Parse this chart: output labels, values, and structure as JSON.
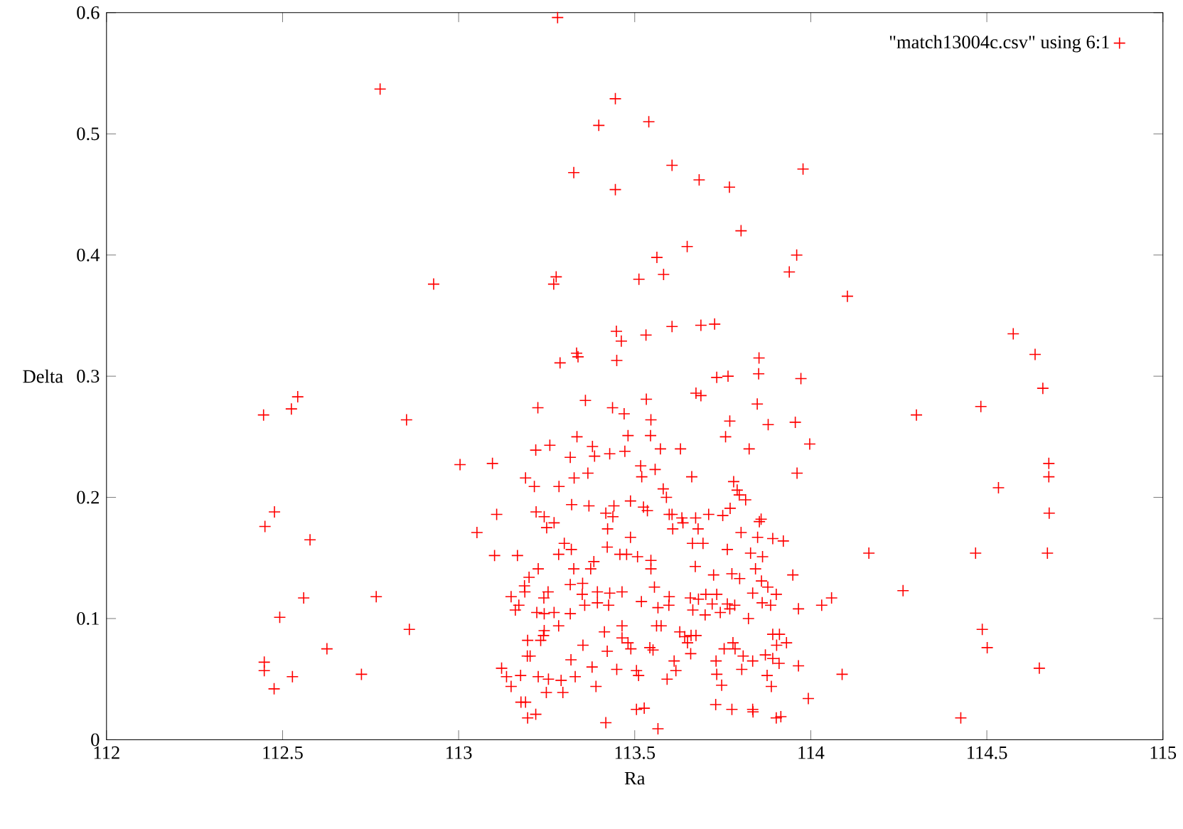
{
  "chart_data": {
    "type": "scatter",
    "xlabel": "Ra",
    "ylabel": "Delta",
    "xlim": [
      112,
      115
    ],
    "ylim": [
      0,
      0.6
    ],
    "xticks": [
      112,
      112.5,
      113,
      113.5,
      114,
      114.5,
      115
    ],
    "yticks": [
      0,
      0.1,
      0.2,
      0.3,
      0.4,
      0.5,
      0.6
    ],
    "marker": "cross",
    "legend": "top right",
    "series": [
      {
        "name": "\"match13004c.csv\" using 6:1",
        "color": "#ff0000",
        "x": [
          112.446,
          112.525,
          112.543,
          112.852,
          112.929,
          112.477,
          112.45,
          112.578,
          112.56,
          112.766,
          112.492,
          112.626,
          112.86,
          112.448,
          112.448,
          112.476,
          112.528,
          112.724,
          113.004,
          113.096,
          113.108,
          113.052,
          113.102,
          113.122,
          113.136,
          113.281,
          112.777,
          113.445,
          113.398,
          113.54,
          113.327,
          113.445,
          113.606,
          113.683,
          113.769,
          113.978,
          113.802,
          113.649,
          113.96,
          114.104,
          114.575,
          114.637,
          114.659,
          113.972,
          114.483,
          114.3,
          113.956,
          113.997,
          113.961,
          114.676,
          114.676,
          114.533,
          114.677,
          114.165,
          114.468,
          114.672,
          114.262,
          114.059,
          114.031,
          113.965,
          114.487,
          114.501,
          113.965,
          114.089,
          114.649,
          113.993,
          114.426,
          113.563,
          113.277,
          113.27,
          113.512,
          113.582,
          113.939,
          113.448,
          113.462,
          113.532,
          113.606,
          113.688,
          113.727,
          113.288,
          113.335,
          113.339,
          113.449,
          113.853,
          113.852,
          113.733,
          113.765,
          113.225,
          113.36,
          113.437,
          113.47,
          113.533,
          113.674,
          113.688,
          113.848,
          113.546,
          113.77,
          113.879,
          113.219,
          113.259,
          113.336,
          113.38,
          113.317,
          113.386,
          113.429,
          113.472,
          113.481,
          113.545,
          113.573,
          113.63,
          113.758,
          113.825,
          113.19,
          113.215,
          113.285,
          113.328,
          113.367,
          113.517,
          113.52,
          113.558,
          113.662,
          113.781,
          113.791,
          113.581,
          113.22,
          113.243,
          113.25,
          113.271,
          113.167,
          113.284,
          113.3,
          113.226,
          113.2,
          113.187,
          113.149,
          113.188,
          113.242,
          113.254,
          113.171,
          113.161,
          113.222,
          113.243,
          113.271,
          113.284,
          113.243,
          113.196,
          113.233,
          113.241,
          113.203,
          113.195,
          113.176,
          113.149,
          113.226,
          113.255,
          113.291,
          113.249,
          113.296,
          113.177,
          113.19,
          113.219,
          113.196,
          113.59,
          113.797,
          113.815,
          113.321,
          113.37,
          113.441,
          113.488,
          113.525,
          113.536,
          113.418,
          113.438,
          113.423,
          113.598,
          113.606,
          113.634,
          113.673,
          113.71,
          113.75,
          113.771,
          113.608,
          113.637,
          113.68,
          113.859,
          113.854,
          113.802,
          113.849,
          113.892,
          113.922,
          113.488,
          113.422,
          113.664,
          113.694,
          113.763,
          113.829,
          113.863,
          113.458,
          113.477,
          113.508,
          113.546,
          113.384,
          113.32,
          113.546,
          113.375,
          113.327,
          113.672,
          113.724,
          113.776,
          113.798,
          113.843,
          113.86,
          113.878,
          113.949,
          113.317,
          113.352,
          113.556,
          113.351,
          113.394,
          113.429,
          113.464,
          113.358,
          113.394,
          113.426,
          113.519,
          113.566,
          113.597,
          113.598,
          113.658,
          113.681,
          113.702,
          113.733,
          113.665,
          113.7,
          113.72,
          113.743,
          113.763,
          113.77,
          113.784,
          113.835,
          113.823,
          113.862,
          113.886,
          113.902,
          113.317,
          113.464,
          113.562,
          113.575,
          113.414,
          113.464,
          113.481,
          113.489,
          113.353,
          113.422,
          113.543,
          113.552,
          113.628,
          113.642,
          113.66,
          113.674,
          113.65,
          113.659,
          113.754,
          113.779,
          113.785,
          113.808,
          113.835,
          113.871,
          113.892,
          113.903,
          113.911,
          113.931,
          113.892,
          113.91,
          113.319,
          113.379,
          113.331,
          113.449,
          113.505,
          113.511,
          113.612,
          113.617,
          113.592,
          113.731,
          113.733,
          113.747,
          113.804,
          113.876,
          113.888,
          113.39,
          113.73,
          113.776,
          113.835,
          113.836,
          113.902,
          113.915,
          113.505,
          113.527,
          113.418,
          113.566
        ],
        "values": [
          0.268,
          0.273,
          0.283,
          0.264,
          0.376,
          0.188,
          0.176,
          0.165,
          0.117,
          0.118,
          0.101,
          0.075,
          0.091,
          0.064,
          0.057,
          0.042,
          0.052,
          0.054,
          0.227,
          0.228,
          0.186,
          0.171,
          0.152,
          0.059,
          0.052,
          0.596,
          0.537,
          0.529,
          0.507,
          0.51,
          0.468,
          0.454,
          0.474,
          0.462,
          0.456,
          0.471,
          0.42,
          0.407,
          0.4,
          0.366,
          0.335,
          0.318,
          0.29,
          0.298,
          0.275,
          0.268,
          0.262,
          0.244,
          0.22,
          0.228,
          0.217,
          0.208,
          0.187,
          0.154,
          0.154,
          0.154,
          0.123,
          0.117,
          0.111,
          0.108,
          0.091,
          0.076,
          0.061,
          0.054,
          0.059,
          0.034,
          0.018,
          0.398,
          0.382,
          0.376,
          0.38,
          0.384,
          0.386,
          0.337,
          0.329,
          0.334,
          0.341,
          0.342,
          0.343,
          0.311,
          0.319,
          0.316,
          0.313,
          0.315,
          0.302,
          0.299,
          0.3,
          0.274,
          0.28,
          0.274,
          0.269,
          0.281,
          0.286,
          0.284,
          0.277,
          0.264,
          0.263,
          0.26,
          0.239,
          0.243,
          0.25,
          0.242,
          0.233,
          0.234,
          0.236,
          0.238,
          0.251,
          0.251,
          0.24,
          0.24,
          0.25,
          0.24,
          0.216,
          0.209,
          0.209,
          0.216,
          0.22,
          0.226,
          0.217,
          0.223,
          0.217,
          0.213,
          0.206,
          0.207,
          0.188,
          0.184,
          0.175,
          0.179,
          0.152,
          0.153,
          0.162,
          0.141,
          0.134,
          0.127,
          0.118,
          0.122,
          0.117,
          0.122,
          0.111,
          0.107,
          0.105,
          0.104,
          0.105,
          0.094,
          0.09,
          0.082,
          0.082,
          0.086,
          0.069,
          0.069,
          0.053,
          0.044,
          0.052,
          0.05,
          0.049,
          0.039,
          0.039,
          0.031,
          0.031,
          0.021,
          0.018,
          0.2,
          0.202,
          0.198,
          0.194,
          0.193,
          0.193,
          0.197,
          0.192,
          0.189,
          0.187,
          0.184,
          0.174,
          0.186,
          0.186,
          0.183,
          0.183,
          0.186,
          0.185,
          0.191,
          0.174,
          0.179,
          0.174,
          0.182,
          0.18,
          0.171,
          0.167,
          0.166,
          0.164,
          0.167,
          0.159,
          0.162,
          0.162,
          0.157,
          0.154,
          0.151,
          0.153,
          0.153,
          0.151,
          0.148,
          0.147,
          0.157,
          0.141,
          0.141,
          0.141,
          0.143,
          0.136,
          0.137,
          0.133,
          0.141,
          0.131,
          0.126,
          0.136,
          0.128,
          0.129,
          0.126,
          0.12,
          0.122,
          0.121,
          0.122,
          0.111,
          0.113,
          0.111,
          0.114,
          0.109,
          0.111,
          0.118,
          0.117,
          0.116,
          0.12,
          0.12,
          0.107,
          0.103,
          0.112,
          0.105,
          0.112,
          0.108,
          0.111,
          0.121,
          0.1,
          0.113,
          0.111,
          0.12,
          0.104,
          0.094,
          0.094,
          0.094,
          0.089,
          0.084,
          0.08,
          0.075,
          0.078,
          0.073,
          0.076,
          0.074,
          0.089,
          0.085,
          0.086,
          0.086,
          0.08,
          0.071,
          0.075,
          0.08,
          0.075,
          0.069,
          0.065,
          0.07,
          0.067,
          0.078,
          0.087,
          0.08,
          0.087,
          0.063,
          0.066,
          0.06,
          0.052,
          0.058,
          0.057,
          0.053,
          0.065,
          0.057,
          0.05,
          0.065,
          0.054,
          0.045,
          0.058,
          0.053,
          0.044,
          0.044,
          0.029,
          0.025,
          0.025,
          0.023,
          0.018,
          0.019,
          0.025,
          0.026,
          0.014,
          0.009
        ]
      }
    ]
  }
}
